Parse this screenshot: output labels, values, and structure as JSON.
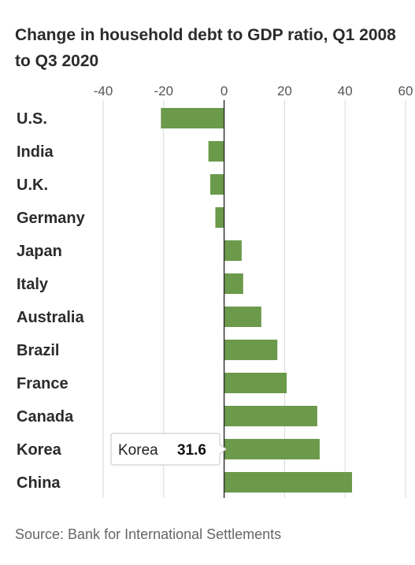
{
  "chart_data": {
    "type": "bar",
    "orientation": "horizontal",
    "title": "Change in household debt to GDP ratio, Q1 2008 to Q3 2020",
    "categories": [
      "U.S.",
      "India",
      "U.K.",
      "Germany",
      "Japan",
      "Italy",
      "Australia",
      "Brazil",
      "France",
      "Canada",
      "Korea",
      "China"
    ],
    "values": [
      -20.9,
      -5.2,
      -4.6,
      -2.9,
      5.8,
      6.3,
      12.3,
      17.6,
      20.7,
      30.8,
      31.6,
      42.3
    ],
    "xlim": [
      -40,
      60
    ],
    "xticks": [
      -40,
      -20,
      0,
      20,
      40,
      60
    ],
    "xtick_labels": [
      "-40",
      "-20",
      "0",
      "20",
      "40",
      "60"
    ],
    "grid": true,
    "bar_color": "#6b9a4b",
    "tooltip": {
      "label": "Korea",
      "value": "31.6"
    },
    "source": "Source: Bank for International Settlements"
  }
}
